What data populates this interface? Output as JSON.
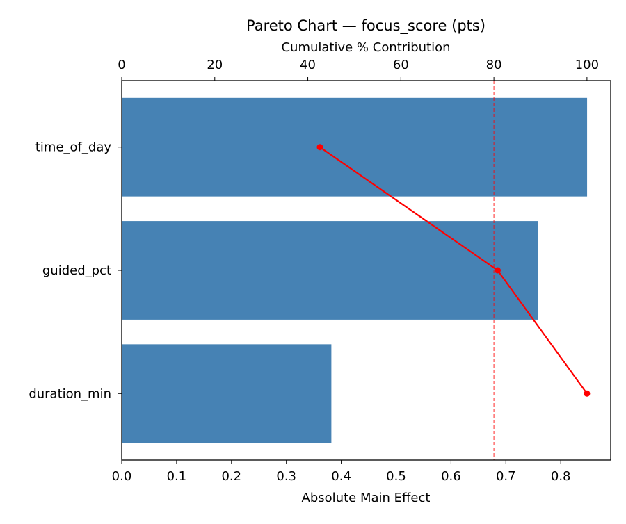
{
  "chart_data": {
    "type": "bar",
    "orientation": "horizontal",
    "title": "Pareto Chart — focus_score (pts)",
    "xlabel": "Absolute Main Effect",
    "x2label": "Cumulative % Contribution",
    "categories": [
      "time_of_day",
      "guided_pct",
      "duration_min"
    ],
    "values": [
      0.848,
      0.759,
      0.382
    ],
    "cumulative_pct": [
      42.6,
      80.8,
      100.0
    ],
    "threshold_pct": 80,
    "xlim": [
      0,
      0.891
    ],
    "x2lim": [
      0,
      105.1
    ],
    "xticks": [
      "0.0",
      "0.1",
      "0.2",
      "0.3",
      "0.4",
      "0.5",
      "0.6",
      "0.7",
      "0.8"
    ],
    "x2ticks": [
      "0",
      "20",
      "40",
      "60",
      "80",
      "100"
    ],
    "grid": false,
    "colors": {
      "bar": "#4682b4",
      "line": "#ff0000",
      "threshold": "#ff0000"
    }
  }
}
